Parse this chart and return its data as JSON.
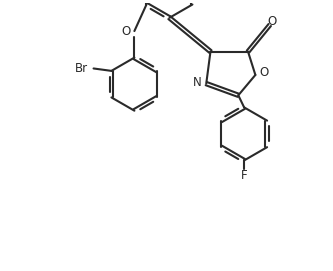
{
  "bg_color": "#ffffff",
  "line_color": "#2a2a2a",
  "line_width": 1.5,
  "font_size": 8.5,
  "figsize": [
    3.33,
    2.71
  ],
  "dpi": 100,
  "xlim": [
    -1.5,
    4.5
  ],
  "ylim": [
    -3.5,
    2.0
  ]
}
